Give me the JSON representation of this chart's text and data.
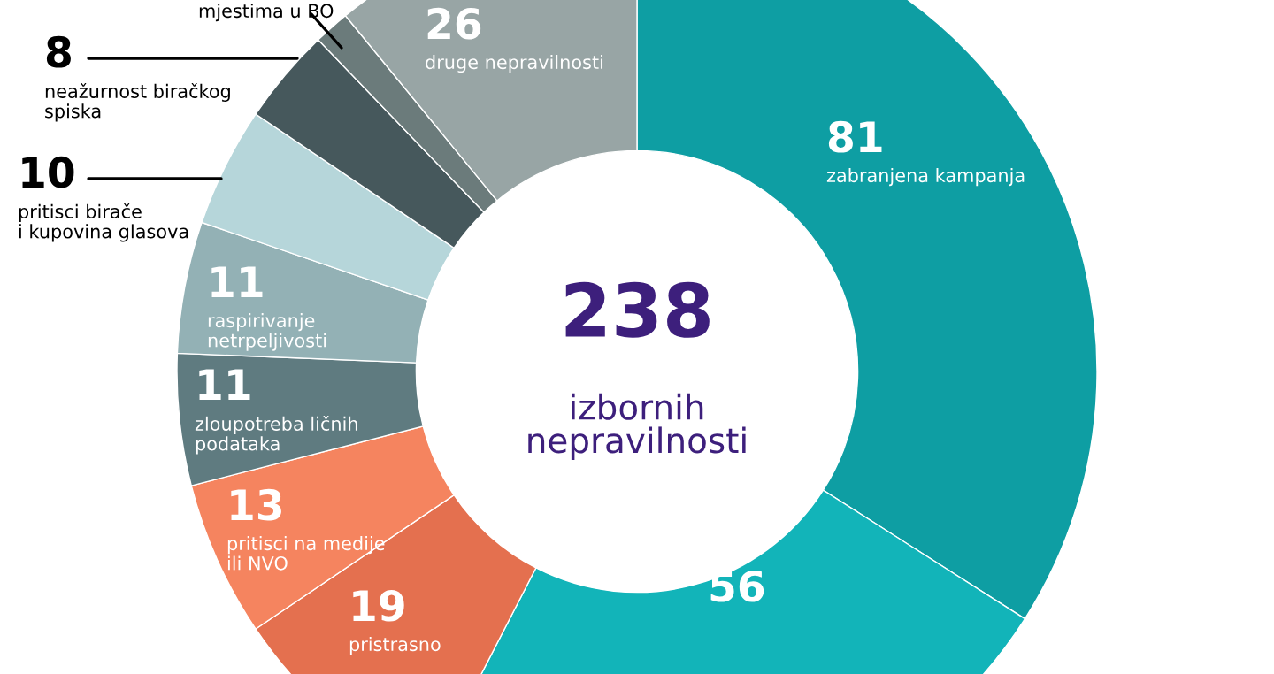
{
  "chart_data": {
    "type": "donut",
    "categories": [
      "zabranjena kampanja",
      null,
      "pristrasno",
      "pritisci na medije ili NVO",
      "zloupotreba ličnih podataka",
      "raspirivanje netrpeljivosti",
      "pritisci birače i kupovina glasova",
      "neažurnost biračkog spiska",
      "mjestima u BO",
      "druge nepravilnosti"
    ],
    "values": [
      81,
      56,
      19,
      13,
      11,
      11,
      10,
      8,
      3,
      26
    ],
    "value_labels": [
      "81",
      "56",
      "19",
      "13",
      "11",
      "11",
      "10",
      "8",
      null,
      "26"
    ],
    "colors": [
      "#0e9ea3",
      "#12b4b9",
      "#e4704f",
      "#f5845f",
      "#5f7b80",
      "#93b1b5",
      "#b6d6da",
      "#46585c",
      "#6b7b7b",
      "#98a5a5"
    ],
    "annotations": [
      "238",
      "izbornih nepravilnosti"
    ],
    "legend": false
  }
}
